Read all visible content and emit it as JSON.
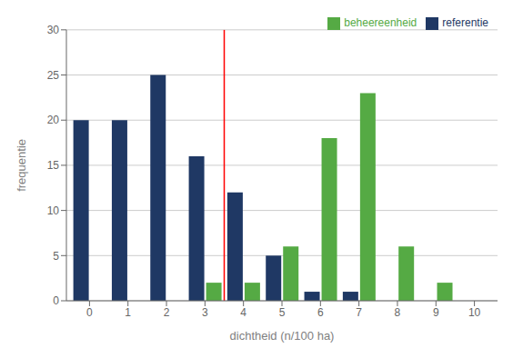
{
  "chart_data": {
    "type": "bar",
    "x": [
      0,
      1,
      2,
      3,
      4,
      5,
      6,
      7,
      8,
      9,
      10
    ],
    "series": [
      {
        "name": "referentie",
        "color": "#1F3864",
        "values": [
          20,
          20,
          25,
          16,
          12,
          5,
          1,
          1,
          0,
          0,
          0
        ]
      },
      {
        "name": "beheereenheid",
        "color": "#55AA44",
        "values": [
          0,
          0,
          0,
          2,
          2,
          6,
          18,
          23,
          6,
          2,
          0
        ]
      }
    ],
    "reference_line": {
      "x": 3.5,
      "color": "red"
    },
    "xlabel": "dichtheid (n/100 ha)",
    "ylabel": "frequentie",
    "xlim": [
      -0.6,
      10.6
    ],
    "ylim": [
      0,
      30
    ],
    "xticks": [
      0,
      1,
      2,
      3,
      4,
      5,
      6,
      7,
      8,
      9,
      10
    ],
    "yticks": [
      0,
      5,
      10,
      15,
      20,
      25,
      30
    ],
    "grid": true,
    "legend": "upper right"
  }
}
